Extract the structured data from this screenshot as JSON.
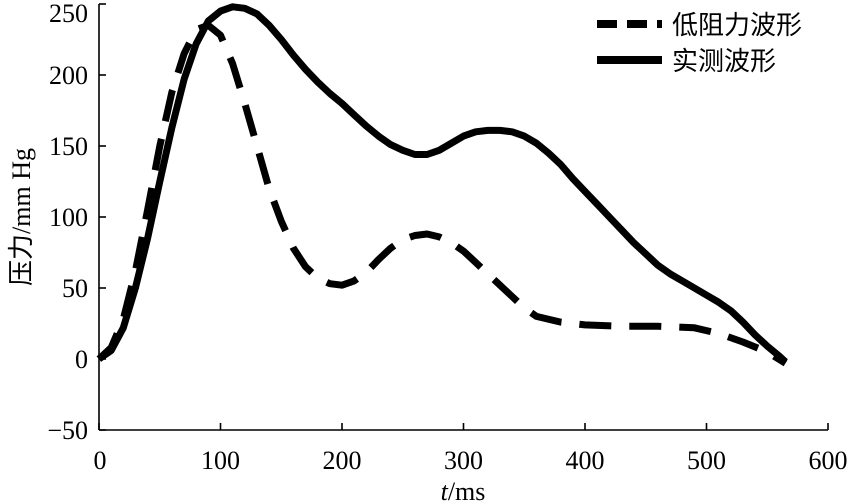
{
  "chart_data": {
    "type": "line",
    "xlabel_italic": "t",
    "xlabel_unit": "/ms",
    "ylabel": "压力/mm Hg",
    "xlim": [
      0,
      600
    ],
    "ylim": [
      -50,
      250
    ],
    "xticks": [
      0,
      100,
      200,
      300,
      400,
      500,
      600
    ],
    "yticks": [
      -50,
      0,
      50,
      100,
      150,
      200,
      250
    ],
    "xtick_labels": [
      "0",
      "100",
      "200",
      "300",
      "400",
      "500",
      "600"
    ],
    "ytick_labels": [
      "−50",
      "0",
      "50",
      "100",
      "150",
      "200",
      "250"
    ],
    "grid": false,
    "legend_position": "top-right",
    "series": [
      {
        "name": "低阻力波形",
        "style": "dashed",
        "color": "#000000",
        "points": [
          [
            0,
            0
          ],
          [
            10,
            8
          ],
          [
            20,
            28
          ],
          [
            30,
            62
          ],
          [
            40,
            105
          ],
          [
            50,
            150
          ],
          [
            60,
            188
          ],
          [
            70,
            215
          ],
          [
            80,
            232
          ],
          [
            90,
            235
          ],
          [
            100,
            228
          ],
          [
            110,
            208
          ],
          [
            120,
            180
          ],
          [
            130,
            150
          ],
          [
            140,
            120
          ],
          [
            150,
            97
          ],
          [
            160,
            78
          ],
          [
            170,
            65
          ],
          [
            180,
            57
          ],
          [
            190,
            53
          ],
          [
            200,
            52
          ],
          [
            210,
            55
          ],
          [
            220,
            61
          ],
          [
            230,
            70
          ],
          [
            240,
            78
          ],
          [
            250,
            84
          ],
          [
            260,
            87
          ],
          [
            270,
            88
          ],
          [
            280,
            86
          ],
          [
            290,
            82
          ],
          [
            300,
            76
          ],
          [
            310,
            68
          ],
          [
            320,
            60
          ],
          [
            330,
            52
          ],
          [
            340,
            44
          ],
          [
            350,
            36
          ],
          [
            360,
            30
          ],
          [
            380,
            26
          ],
          [
            400,
            24
          ],
          [
            430,
            23
          ],
          [
            460,
            23
          ],
          [
            490,
            22
          ],
          [
            510,
            18
          ],
          [
            530,
            12
          ],
          [
            550,
            5
          ],
          [
            565,
            -3
          ]
        ]
      },
      {
        "name": "实测波形",
        "style": "solid",
        "color": "#000000",
        "points": [
          [
            0,
            0
          ],
          [
            10,
            6
          ],
          [
            20,
            22
          ],
          [
            30,
            50
          ],
          [
            40,
            85
          ],
          [
            50,
            125
          ],
          [
            60,
            163
          ],
          [
            70,
            197
          ],
          [
            80,
            222
          ],
          [
            90,
            238
          ],
          [
            100,
            245
          ],
          [
            110,
            248
          ],
          [
            120,
            247
          ],
          [
            130,
            243
          ],
          [
            140,
            235
          ],
          [
            150,
            225
          ],
          [
            160,
            214
          ],
          [
            170,
            204
          ],
          [
            180,
            195
          ],
          [
            190,
            187
          ],
          [
            200,
            180
          ],
          [
            210,
            172
          ],
          [
            220,
            164
          ],
          [
            230,
            157
          ],
          [
            240,
            151
          ],
          [
            250,
            147
          ],
          [
            260,
            144
          ],
          [
            270,
            144
          ],
          [
            280,
            147
          ],
          [
            290,
            152
          ],
          [
            300,
            157
          ],
          [
            310,
            160
          ],
          [
            320,
            161
          ],
          [
            330,
            161
          ],
          [
            340,
            160
          ],
          [
            350,
            157
          ],
          [
            360,
            152
          ],
          [
            370,
            145
          ],
          [
            380,
            137
          ],
          [
            390,
            127
          ],
          [
            400,
            118
          ],
          [
            410,
            109
          ],
          [
            420,
            100
          ],
          [
            430,
            91
          ],
          [
            440,
            82
          ],
          [
            450,
            74
          ],
          [
            460,
            66
          ],
          [
            470,
            60
          ],
          [
            480,
            55
          ],
          [
            490,
            50
          ],
          [
            500,
            45
          ],
          [
            510,
            40
          ],
          [
            520,
            34
          ],
          [
            530,
            26
          ],
          [
            540,
            17
          ],
          [
            550,
            9
          ],
          [
            560,
            2
          ],
          [
            565,
            -2
          ]
        ]
      }
    ]
  }
}
